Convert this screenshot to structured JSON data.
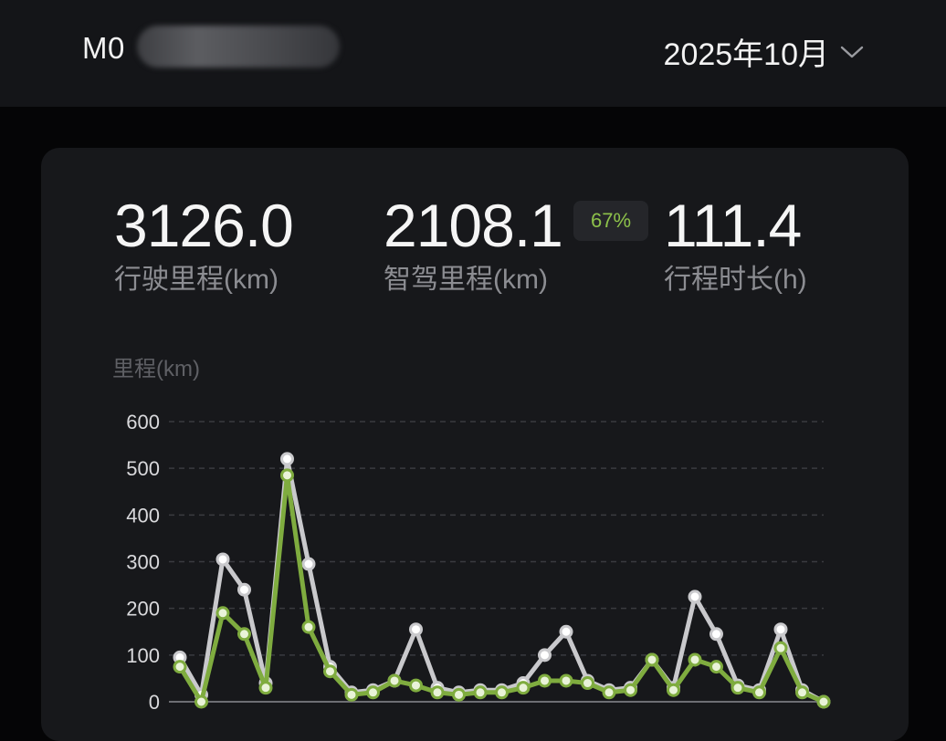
{
  "header": {
    "vehicle_id": "M0",
    "month": "2025年10月"
  },
  "stats": {
    "driving_distance": {
      "value": "3126.0",
      "label": "行驶里程(km)"
    },
    "smart_distance": {
      "value": "2108.1",
      "label": "智驾里程(km)",
      "badge": "67%"
    },
    "trip_duration": {
      "value": "111.4",
      "label": "行程时长(h)"
    }
  },
  "chart_data": {
    "type": "line",
    "ylabel": "里程(km)",
    "ylim": [
      0,
      600
    ],
    "yticks": [
      "0",
      "100",
      "200",
      "300",
      "400",
      "500",
      "600"
    ],
    "grid": true,
    "x": [
      1,
      2,
      3,
      4,
      5,
      6,
      7,
      8,
      9,
      10,
      11,
      12,
      13,
      14,
      15,
      16,
      17,
      18,
      19,
      20,
      21,
      22,
      23,
      24,
      25,
      26,
      27,
      28,
      29,
      30,
      31
    ],
    "series": [
      {
        "color": "#c9c9cc",
        "values": [
          95,
          15,
          305,
          240,
          40,
          520,
          295,
          75,
          20,
          25,
          45,
          155,
          30,
          20,
          25,
          25,
          40,
          100,
          150,
          45,
          25,
          30,
          90,
          30,
          225,
          145,
          35,
          25,
          155,
          25,
          0
        ]
      },
      {
        "color": "#7fac3f",
        "values": [
          75,
          0,
          190,
          145,
          30,
          485,
          160,
          65,
          15,
          20,
          45,
          35,
          20,
          15,
          20,
          20,
          30,
          45,
          45,
          40,
          20,
          25,
          90,
          25,
          90,
          75,
          30,
          20,
          115,
          20,
          0
        ]
      }
    ]
  }
}
